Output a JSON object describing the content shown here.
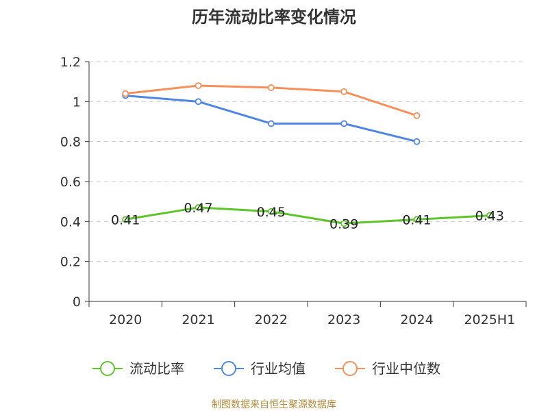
{
  "chart_data": {
    "type": "line",
    "title": "历年流动比率变化情况",
    "categories": [
      "2020",
      "2021",
      "2022",
      "2023",
      "2024",
      "2025H1"
    ],
    "ylim": [
      0,
      1.2
    ],
    "yticks": [
      "0",
      "0.2",
      "0.4",
      "0.6",
      "0.8",
      "1",
      "1.2"
    ],
    "grid": "horizontal-dashed",
    "legend_position": "bottom",
    "series": [
      {
        "name": "流动比率",
        "color": "#5ec42b",
        "values": [
          0.41,
          0.47,
          0.45,
          0.39,
          0.41,
          0.43
        ],
        "data_labels": [
          "0.41",
          "0.47",
          "0.45",
          "0.39",
          "0.41",
          "0.43"
        ]
      },
      {
        "name": "行业均值",
        "color": "#4f86e0",
        "values": [
          1.03,
          1.0,
          0.89,
          0.89,
          0.8,
          null
        ]
      },
      {
        "name": "行业中位数",
        "color": "#f5905a",
        "values": [
          1.04,
          1.08,
          1.07,
          1.05,
          0.93,
          null
        ]
      }
    ],
    "source": "制图数据来自恒生聚源数据库"
  }
}
